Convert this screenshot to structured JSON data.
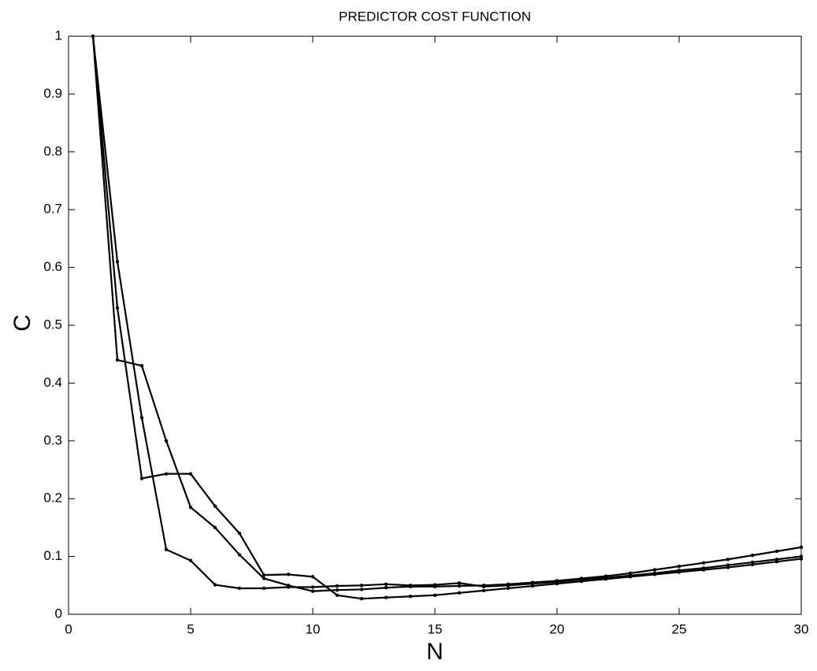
{
  "chart_data": {
    "type": "line",
    "title": "PREDICTOR COST FUNCTION",
    "xlabel": "N",
    "ylabel": "C",
    "x": [
      1,
      2,
      3,
      4,
      5,
      6,
      7,
      8,
      9,
      10,
      11,
      12,
      13,
      14,
      15,
      16,
      17,
      18,
      19,
      20,
      21,
      22,
      23,
      24,
      25,
      26,
      27,
      28,
      29,
      30
    ],
    "series": [
      {
        "color": "#000000",
        "values": [
          1,
          0.44,
          0.43,
          0.3,
          0.185,
          0.15,
          0.103,
          0.062,
          0.05,
          0.04,
          0.042,
          0.043,
          0.046,
          0.048,
          0.048,
          0.049,
          0.05,
          0.052,
          0.055,
          0.058,
          0.062,
          0.066,
          0.071,
          0.077,
          0.083,
          0.089,
          0.095,
          0.102,
          0.109,
          0.116
        ]
      },
      {
        "color": "#000000",
        "values": [
          1,
          0.53,
          0.235,
          0.243,
          0.243,
          0.187,
          0.14,
          0.068,
          0.069,
          0.065,
          0.033,
          0.027,
          0.029,
          0.031,
          0.033,
          0.037,
          0.041,
          0.045,
          0.049,
          0.053,
          0.057,
          0.061,
          0.065,
          0.069,
          0.073,
          0.077,
          0.081,
          0.086,
          0.091,
          0.096
        ]
      },
      {
        "color": "#000000",
        "values": [
          1,
          0.61,
          0.34,
          0.112,
          0.093,
          0.051,
          0.045,
          0.045,
          0.047,
          0.047,
          0.049,
          0.05,
          0.052,
          0.05,
          0.051,
          0.054,
          0.048,
          0.05,
          0.053,
          0.056,
          0.06,
          0.063,
          0.067,
          0.071,
          0.076,
          0.08,
          0.085,
          0.09,
          0.095,
          0.1
        ]
      }
    ],
    "xlim": [
      0,
      30
    ],
    "xticks": [
      0,
      5,
      10,
      15,
      20,
      25,
      30
    ],
    "ylim": [
      0,
      1
    ],
    "yticks": [
      0,
      0.1,
      0.2,
      0.3,
      0.4,
      0.5,
      0.6,
      0.7,
      0.8,
      0.9,
      1
    ],
    "grid": false
  }
}
